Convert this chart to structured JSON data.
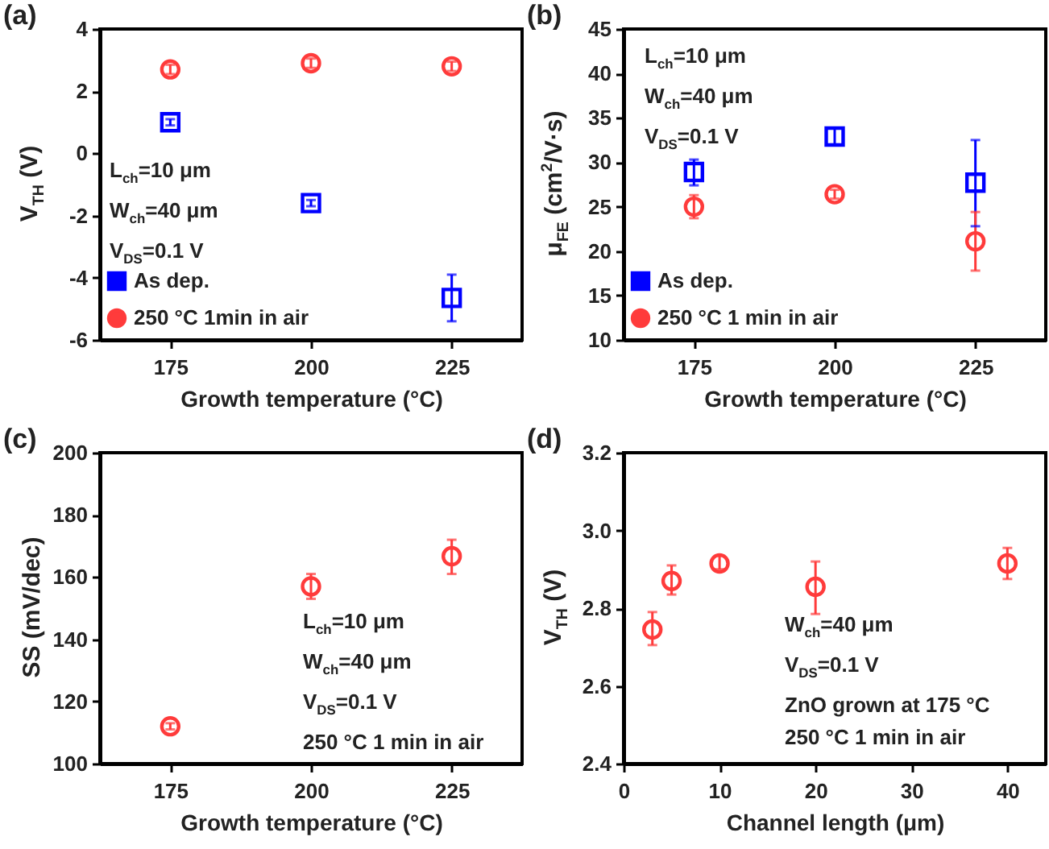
{
  "chart_data": [
    {
      "type": "scatter",
      "title": "(a)",
      "xlabel": "Growth temperature (°C)",
      "ylabel": "V$_{TH}$ (V)",
      "x": [
        175,
        200,
        225
      ],
      "xlim": [
        162.5,
        237.5
      ],
      "xticks": [
        175,
        200,
        225
      ],
      "ylim": [
        -6,
        4
      ],
      "yticks": [
        -6,
        -4,
        -2,
        0,
        2,
        4
      ],
      "legend": "bottom left",
      "grid": false,
      "series": [
        {
          "name": "As dep.",
          "color": "#0000ff",
          "marker": "square",
          "values": [
            1.0,
            -1.6,
            -4.65
          ],
          "errors": [
            0.1,
            0.1,
            [
              -5.4,
              -3.9
            ]
          ]
        },
        {
          "name": "250 °C 1min in air",
          "color": "#ff3b3b",
          "marker": "circle",
          "values": [
            2.7,
            2.9,
            2.8
          ],
          "errors": [
            0.15,
            0.15,
            0.15
          ]
        }
      ],
      "annotations": [
        "L$_{ch}$=10 μm",
        "W$_{ch}$=40 μm",
        "V$_{DS}$=0.1 V"
      ]
    },
    {
      "type": "scatter",
      "title": "(b)",
      "xlabel": "Growth temperature (°C)",
      "ylabel": "μ$_{FE}$ (cm$^{2}$/V·s)",
      "x": [
        175,
        200,
        225
      ],
      "xlim": [
        162.5,
        237.5
      ],
      "xticks": [
        175,
        200,
        225
      ],
      "ylim": [
        10,
        45
      ],
      "yticks": [
        10,
        15,
        20,
        25,
        30,
        35,
        40,
        45
      ],
      "legend": "bottom left",
      "grid": false,
      "series": [
        {
          "name": "As dep.",
          "color": "#0000ff",
          "marker": "square",
          "values": [
            28.9,
            32.9,
            27.7
          ],
          "errors": [
            [
              27.4,
              30.3
            ],
            [
              32.0,
              33.8
            ],
            [
              22.8,
              32.5
            ]
          ]
        },
        {
          "name": "250 °C 1 min in air",
          "color": "#ff3b3b",
          "marker": "circle",
          "values": [
            25.0,
            26.4,
            21.1
          ],
          "errors": [
            [
              23.7,
              26.3
            ],
            0.5,
            [
              17.8,
              24.4
            ]
          ]
        }
      ],
      "annotations": [
        "L$_{ch}$=10 μm",
        "W$_{ch}$=40 μm",
        "V$_{DS}$=0.1 V"
      ]
    },
    {
      "type": "scatter",
      "title": "(c)",
      "xlabel": "Growth temperature (°C)",
      "ylabel": "SS (mV/dec)",
      "x": [
        175,
        200,
        225
      ],
      "xlim": [
        162.5,
        237.5
      ],
      "xticks": [
        175,
        200,
        225
      ],
      "ylim": [
        100,
        200
      ],
      "yticks": [
        100,
        120,
        140,
        160,
        180,
        200
      ],
      "grid": false,
      "series": [
        {
          "color": "#ff3b3b",
          "marker": "circle",
          "values": [
            112,
            157,
            166.7
          ],
          "errors": [
            1,
            [
              153,
              161
            ],
            [
              161,
              172
            ]
          ]
        }
      ],
      "annotations": [
        "L$_{ch}$=10 μm",
        "W$_{ch}$=40 μm",
        "V$_{DS}$=0.1 V",
        "250 °C 1 min in air"
      ]
    },
    {
      "type": "scatter",
      "title": "(d)",
      "xlabel": "Channel length (μm)",
      "ylabel": "V$_{TH}$ (V)",
      "x": [
        3,
        5,
        10,
        20,
        40
      ],
      "xlim": [
        0,
        44
      ],
      "xticks": [
        0,
        10,
        20,
        30,
        40
      ],
      "ylim": [
        2.4,
        3.2
      ],
      "yticks": [
        2.4,
        2.6,
        2.8,
        {
          "value": 3,
          "label": "3.0"
        },
        3.2
      ],
      "grid": false,
      "series": [
        {
          "color": "#ff3b3b",
          "marker": "circle",
          "values": [
            2.745,
            2.87,
            2.915,
            2.855,
            2.915
          ],
          "errors": [
            [
              2.705,
              2.79
            ],
            [
              2.835,
              2.91
            ],
            [
              2.9,
              2.935
            ],
            [
              2.785,
              2.92
            ],
            [
              2.875,
              2.955
            ]
          ]
        }
      ],
      "annotations": [
        "W$_{ch}$=40 μm",
        "V$_{DS}$=0.1 V",
        "ZnO grown at 175 °C",
        "250 °C 1 min in air"
      ]
    }
  ]
}
